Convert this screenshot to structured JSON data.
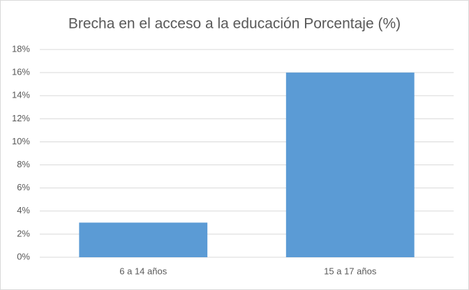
{
  "chart_data": {
    "type": "bar",
    "title": "Brecha en el acceso a la educación Porcentaje (%)",
    "categories": [
      "6 a 14 años",
      "15 a 17 años"
    ],
    "values": [
      3,
      16
    ],
    "color": "#5b9bd5",
    "ylim": [
      0,
      18
    ],
    "yticks": [
      {
        "value": 0,
        "label": "0%"
      },
      {
        "value": 2,
        "label": "2%"
      },
      {
        "value": 4,
        "label": "4%"
      },
      {
        "value": 6,
        "label": "6%"
      },
      {
        "value": 8,
        "label": "8%"
      },
      {
        "value": 10,
        "label": "10%"
      },
      {
        "value": 12,
        "label": "12%"
      },
      {
        "value": 14,
        "label": "14%"
      },
      {
        "value": 16,
        "label": "16%"
      },
      {
        "value": 18,
        "label": "18%"
      }
    ],
    "grid": true
  }
}
